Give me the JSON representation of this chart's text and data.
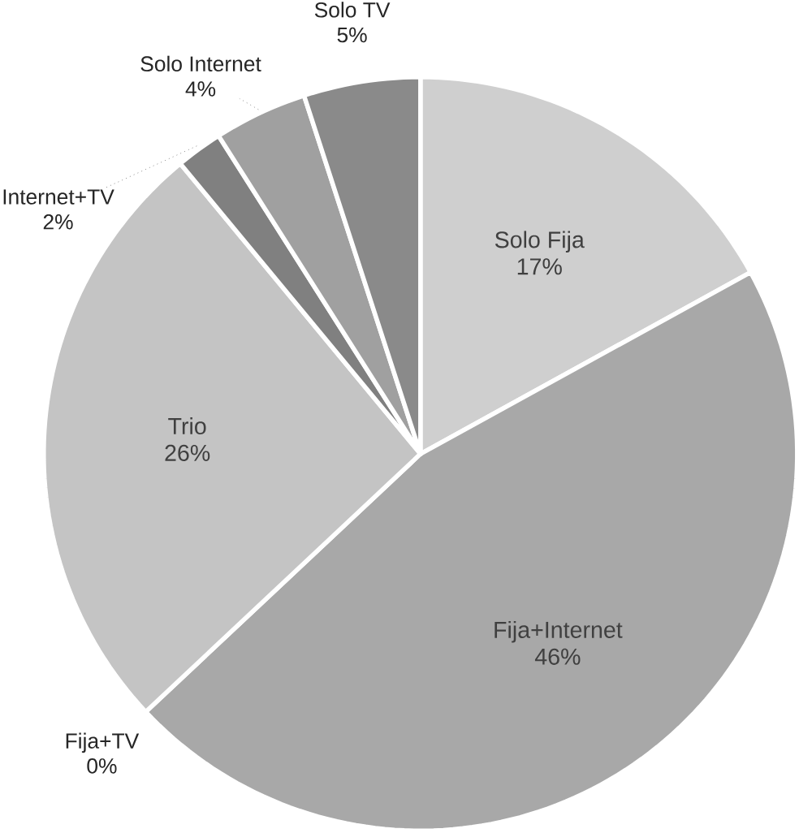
{
  "chart_data": {
    "type": "pie",
    "categories": [
      "Solo Fija",
      "Fija+Internet",
      "Fija+TV",
      "Trio",
      "Internet+TV",
      "Solo Internet",
      "Solo TV"
    ],
    "values": [
      17,
      46,
      0,
      26,
      2,
      4,
      5
    ],
    "value_labels": [
      "17%",
      "46%",
      "0%",
      "26%",
      "2%",
      "4%",
      "5%"
    ],
    "colors": [
      "#cfcfcf",
      "#a8a8a8",
      "#999999",
      "#c4c4c4",
      "#808080",
      "#a0a0a0",
      "#8a8a8a"
    ]
  }
}
